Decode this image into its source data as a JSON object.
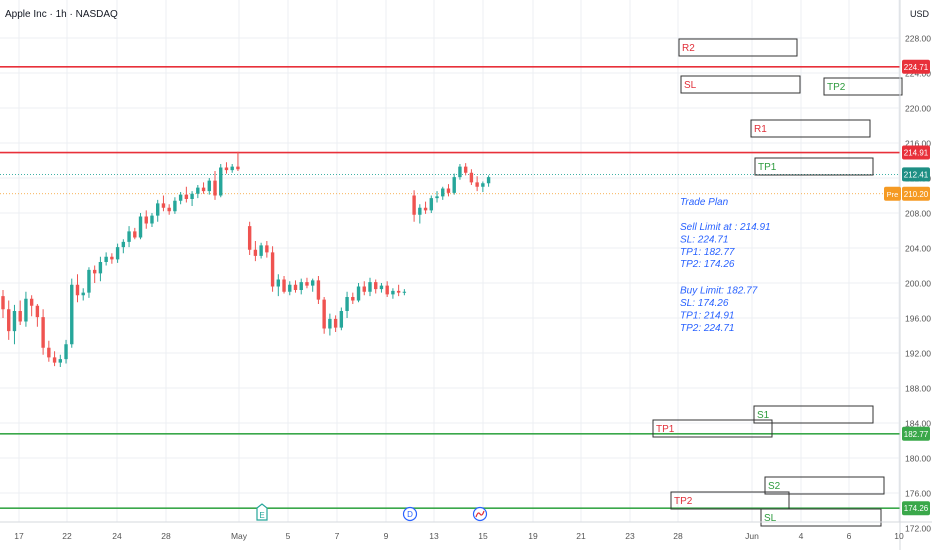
{
  "header": {
    "title": "Apple Inc · 1h · NASDAQ"
  },
  "currency": "USD",
  "colors": {
    "up": "#26a69a",
    "down": "#ef5350",
    "red_line": "#e8303a",
    "green_line": "#3aa84a",
    "grid": "#eceff3",
    "text": "#555555",
    "blue_text": "#2962ff",
    "pre_orange": "#f59a23"
  },
  "chart_data": {
    "type": "candlestick",
    "y_range": [
      172.5,
      232.0
    ],
    "y_ticks": [
      "228.00",
      "224.00",
      "220.00",
      "216.00",
      "212.00",
      "208.00",
      "204.00",
      "200.00",
      "196.00",
      "192.00",
      "188.00",
      "184.00",
      "180.00",
      "176.00",
      "172.00"
    ],
    "x_ticks": [
      "17",
      "22",
      "24",
      "28",
      "May",
      "5",
      "7",
      "9",
      "13",
      "15",
      "19",
      "21",
      "23",
      "28",
      "Jun",
      "4",
      "6",
      "10"
    ],
    "horizontal_lines": [
      {
        "price": 224.71,
        "label": "224.71",
        "color": "red"
      },
      {
        "price": 214.91,
        "label": "214.91",
        "color": "red"
      },
      {
        "price": 182.77,
        "label": "182.77",
        "color": "green"
      },
      {
        "price": 174.26,
        "label": "174.26",
        "color": "green"
      }
    ],
    "current_price": {
      "label": "212.41",
      "price": 212.41
    },
    "pre_market": {
      "tag": "Pre",
      "label": "210.20",
      "price": 210.2
    },
    "candles": [
      [
        198.5,
        199.2,
        196.0,
        197.0
      ],
      [
        197.0,
        198.0,
        193.5,
        194.5
      ],
      [
        194.5,
        197.5,
        193.0,
        196.8
      ],
      [
        196.8,
        198.0,
        195.2,
        195.6
      ],
      [
        195.6,
        199.0,
        195.0,
        198.2
      ],
      [
        198.2,
        198.6,
        196.2,
        197.4
      ],
      [
        197.4,
        197.6,
        195.0,
        196.1
      ],
      [
        196.1,
        197.0,
        191.8,
        192.6
      ],
      [
        192.6,
        193.4,
        191.0,
        191.5
      ],
      [
        191.5,
        192.2,
        190.5,
        190.9
      ],
      [
        190.9,
        191.8,
        190.4,
        191.3
      ],
      [
        191.3,
        193.5,
        190.8,
        193.0
      ],
      [
        193.0,
        200.5,
        192.6,
        199.8
      ],
      [
        199.8,
        201.0,
        197.8,
        198.6
      ],
      [
        198.6,
        199.4,
        198.0,
        198.9
      ],
      [
        198.9,
        201.8,
        198.3,
        201.5
      ],
      [
        201.5,
        202.0,
        200.0,
        201.1
      ],
      [
        201.1,
        203.0,
        200.2,
        202.4
      ],
      [
        202.4,
        203.5,
        202.0,
        203.0
      ],
      [
        203.0,
        203.4,
        202.2,
        202.7
      ],
      [
        202.7,
        204.5,
        202.3,
        204.1
      ],
      [
        204.1,
        205.0,
        203.4,
        204.7
      ],
      [
        204.7,
        206.5,
        204.1,
        205.9
      ],
      [
        205.9,
        206.3,
        205.0,
        205.2
      ],
      [
        205.2,
        208.0,
        205.0,
        207.6
      ],
      [
        207.6,
        208.3,
        206.2,
        206.8
      ],
      [
        206.8,
        208.0,
        206.4,
        207.7
      ],
      [
        207.7,
        209.5,
        207.0,
        209.1
      ],
      [
        209.1,
        210.0,
        208.2,
        208.6
      ],
      [
        208.6,
        209.0,
        207.8,
        208.2
      ],
      [
        208.2,
        209.8,
        207.9,
        209.4
      ],
      [
        209.4,
        210.4,
        209.0,
        210.1
      ],
      [
        210.1,
        211.0,
        209.2,
        209.6
      ],
      [
        209.6,
        210.5,
        208.8,
        210.2
      ],
      [
        210.2,
        211.2,
        209.7,
        210.9
      ],
      [
        210.9,
        211.5,
        210.2,
        210.5
      ],
      [
        210.5,
        212.0,
        210.1,
        211.7
      ],
      [
        211.7,
        212.8,
        209.5,
        210.0
      ],
      [
        210.0,
        213.6,
        209.8,
        213.2
      ],
      [
        213.2,
        213.8,
        212.5,
        212.9
      ],
      [
        212.9,
        213.6,
        212.6,
        213.3
      ],
      [
        213.3,
        215.0,
        212.8,
        213.0
      ],
      [
        206.5,
        207.0,
        203.2,
        203.8
      ],
      [
        203.8,
        204.8,
        202.5,
        203.1
      ],
      [
        203.1,
        204.6,
        202.8,
        204.3
      ],
      [
        204.3,
        204.8,
        202.9,
        203.5
      ],
      [
        203.5,
        204.2,
        199.0,
        199.6
      ],
      [
        199.6,
        201.0,
        198.5,
        200.4
      ],
      [
        200.4,
        200.8,
        198.8,
        199.0
      ],
      [
        199.0,
        200.2,
        198.6,
        199.8
      ],
      [
        199.8,
        200.3,
        198.9,
        199.2
      ],
      [
        199.2,
        200.5,
        198.7,
        200.1
      ],
      [
        200.1,
        200.6,
        199.4,
        199.7
      ],
      [
        199.7,
        200.5,
        199.0,
        200.3
      ],
      [
        200.3,
        200.8,
        197.6,
        198.1
      ],
      [
        198.1,
        198.4,
        194.2,
        194.8
      ],
      [
        194.8,
        196.5,
        194.0,
        195.9
      ],
      [
        195.9,
        196.3,
        194.4,
        194.9
      ],
      [
        194.9,
        197.2,
        194.6,
        196.8
      ],
      [
        196.8,
        199.0,
        196.0,
        198.4
      ],
      [
        198.4,
        198.9,
        197.6,
        198.0
      ],
      [
        198.0,
        200.0,
        197.8,
        199.6
      ],
      [
        199.6,
        200.2,
        198.6,
        199.0
      ],
      [
        199.0,
        200.6,
        198.5,
        200.1
      ],
      [
        200.1,
        200.4,
        198.8,
        199.3
      ],
      [
        199.3,
        200.0,
        198.9,
        199.7
      ],
      [
        199.7,
        200.2,
        198.4,
        198.7
      ],
      [
        198.7,
        199.4,
        198.2,
        199.1
      ],
      [
        199.1,
        199.8,
        198.5,
        198.9
      ],
      [
        198.9,
        199.3,
        198.6,
        199.0
      ],
      [
        210.0,
        210.6,
        207.0,
        207.8
      ],
      [
        207.8,
        209.0,
        206.8,
        208.6
      ],
      [
        208.6,
        209.3,
        207.9,
        208.3
      ],
      [
        208.3,
        210.0,
        208.0,
        209.7
      ],
      [
        209.7,
        210.5,
        209.2,
        209.9
      ],
      [
        209.9,
        211.0,
        209.5,
        210.8
      ],
      [
        210.8,
        211.3,
        209.9,
        210.3
      ],
      [
        210.3,
        212.5,
        210.1,
        212.1
      ],
      [
        212.1,
        213.6,
        211.8,
        213.3
      ],
      [
        213.3,
        213.7,
        212.3,
        212.6
      ],
      [
        212.6,
        213.0,
        211.2,
        211.5
      ],
      [
        211.5,
        212.2,
        210.5,
        211.0
      ],
      [
        211.0,
        211.6,
        210.4,
        211.4
      ],
      [
        211.4,
        212.3,
        211.0,
        212.1
      ]
    ]
  },
  "boxes": [
    {
      "label": "R2",
      "color": "red"
    },
    {
      "label": "SL",
      "color": "red"
    },
    {
      "label": "TP2",
      "color": "green"
    },
    {
      "label": "R1",
      "color": "red"
    },
    {
      "label": "TP1",
      "color": "green"
    },
    {
      "label": "S1",
      "color": "green"
    },
    {
      "label": "TP1",
      "color": "red"
    },
    {
      "label": "S2",
      "color": "green"
    },
    {
      "label": "TP2",
      "color": "red"
    },
    {
      "label": "SL",
      "color": "green"
    }
  ],
  "trade_plan": {
    "title": "Trade Plan",
    "lines": [
      "Sell Limit at : 214.91",
      "SL: 224.71",
      "TP1: 182.77",
      "TP2: 174.26",
      "",
      "Buy Limit: 182.77",
      "SL: 174.26",
      "TP1: 214.91",
      "TP2: 224.71"
    ]
  },
  "event_markers": [
    {
      "letter": "E",
      "type": "earnings"
    },
    {
      "letter": "D",
      "type": "dividend"
    },
    {
      "letter": "",
      "type": "split"
    }
  ]
}
